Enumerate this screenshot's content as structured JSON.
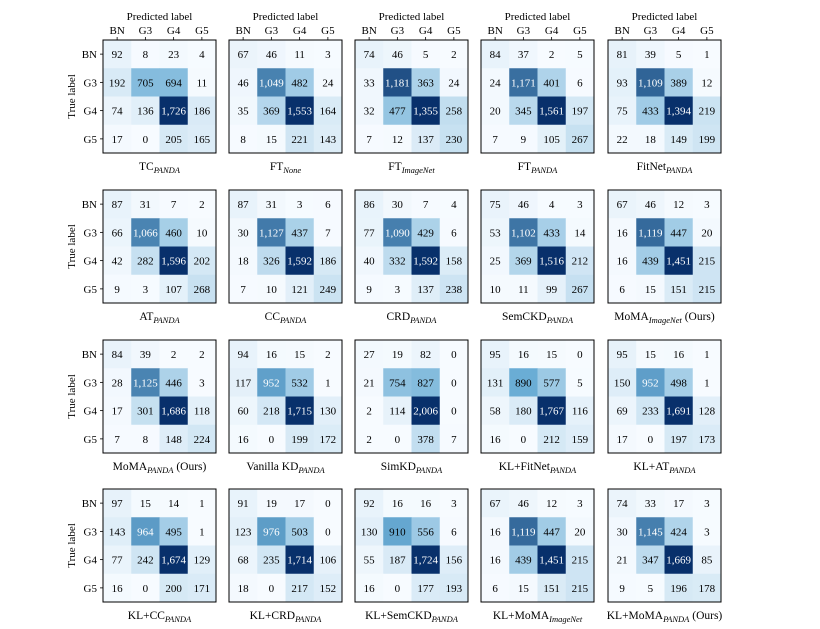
{
  "chart_data": {
    "type": "heatmap",
    "figure": "confusion matrices",
    "row_labels": [
      "BN",
      "G3",
      "G4",
      "G5"
    ],
    "col_labels": [
      "BN",
      "G3",
      "G4",
      "G5"
    ],
    "xlabel": "Predicted label",
    "ylabel": "True label",
    "colormap": "Blues",
    "colors": {
      "low": "#f7fbff",
      "mid": "#6baed6",
      "high": "#08306b",
      "text_dark": "#000000",
      "text_light": "#ffffff"
    },
    "matrices": [
      {
        "caption": "TC",
        "subscript": "PANDA",
        "suffix": "",
        "values": [
          [
            92,
            8,
            23,
            4
          ],
          [
            192,
            705,
            694,
            11
          ],
          [
            74,
            136,
            1726,
            186
          ],
          [
            17,
            0,
            205,
            165
          ]
        ]
      },
      {
        "caption": "FT",
        "subscript": "None",
        "suffix": "",
        "values": [
          [
            67,
            46,
            11,
            3
          ],
          [
            46,
            1049,
            482,
            24
          ],
          [
            35,
            369,
            1553,
            164
          ],
          [
            8,
            15,
            221,
            143
          ]
        ]
      },
      {
        "caption": "FT",
        "subscript": "ImageNet",
        "suffix": "",
        "values": [
          [
            74,
            46,
            5,
            2
          ],
          [
            33,
            1181,
            363,
            24
          ],
          [
            32,
            477,
            1355,
            258
          ],
          [
            7,
            12,
            137,
            230
          ]
        ]
      },
      {
        "caption": "FT",
        "subscript": "PANDA",
        "suffix": "",
        "values": [
          [
            84,
            37,
            2,
            5
          ],
          [
            24,
            1171,
            401,
            6
          ],
          [
            20,
            345,
            1561,
            197
          ],
          [
            7,
            9,
            105,
            267
          ]
        ]
      },
      {
        "caption": "FitNet",
        "subscript": "PANDA",
        "suffix": "",
        "values": [
          [
            81,
            39,
            5,
            1
          ],
          [
            93,
            1109,
            389,
            12
          ],
          [
            75,
            433,
            1394,
            219
          ],
          [
            22,
            18,
            149,
            199
          ]
        ]
      },
      {
        "caption": "AT",
        "subscript": "PANDA",
        "suffix": "",
        "values": [
          [
            87,
            31,
            7,
            2
          ],
          [
            66,
            1066,
            460,
            10
          ],
          [
            42,
            282,
            1596,
            202
          ],
          [
            9,
            3,
            107,
            268
          ]
        ]
      },
      {
        "caption": "CC",
        "subscript": "PANDA",
        "suffix": "",
        "values": [
          [
            87,
            31,
            3,
            6
          ],
          [
            30,
            1127,
            437,
            7
          ],
          [
            18,
            326,
            1592,
            186
          ],
          [
            7,
            10,
            121,
            249
          ]
        ]
      },
      {
        "caption": "CRD",
        "subscript": "PANDA",
        "suffix": "",
        "values": [
          [
            86,
            30,
            7,
            4
          ],
          [
            77,
            1090,
            429,
            6
          ],
          [
            40,
            332,
            1592,
            158
          ],
          [
            9,
            3,
            137,
            238
          ]
        ]
      },
      {
        "caption": "SemCKD",
        "subscript": "PANDA",
        "suffix": "",
        "values": [
          [
            75,
            46,
            4,
            3
          ],
          [
            53,
            1102,
            433,
            14
          ],
          [
            25,
            369,
            1516,
            212
          ],
          [
            10,
            11,
            99,
            267
          ]
        ]
      },
      {
        "caption": "MoMA",
        "subscript": "ImageNet",
        "suffix": " (Ours)",
        "values": [
          [
            67,
            46,
            12,
            3
          ],
          [
            16,
            1119,
            447,
            20
          ],
          [
            16,
            439,
            1451,
            215
          ],
          [
            6,
            15,
            151,
            215
          ]
        ]
      },
      {
        "caption": "MoMA",
        "subscript": "PANDA",
        "suffix": " (Ours)",
        "values": [
          [
            84,
            39,
            2,
            2
          ],
          [
            28,
            1125,
            446,
            3
          ],
          [
            17,
            301,
            1686,
            118
          ],
          [
            7,
            8,
            148,
            224
          ]
        ]
      },
      {
        "caption": "Vanilla KD",
        "subscript": "PANDA",
        "suffix": "",
        "values": [
          [
            94,
            16,
            15,
            2
          ],
          [
            117,
            952,
            532,
            1
          ],
          [
            60,
            218,
            1715,
            130
          ],
          [
            16,
            0,
            199,
            172
          ]
        ]
      },
      {
        "caption": "SimKD",
        "subscript": "PANDA",
        "suffix": "",
        "values": [
          [
            27,
            19,
            82,
            0
          ],
          [
            21,
            754,
            827,
            0
          ],
          [
            2,
            114,
            2006,
            0
          ],
          [
            2,
            0,
            378,
            7
          ]
        ]
      },
      {
        "caption": "KL+FitNet",
        "subscript": "PANDA",
        "suffix": "",
        "values": [
          [
            95,
            16,
            15,
            0
          ],
          [
            131,
            890,
            577,
            5
          ],
          [
            58,
            180,
            1767,
            116
          ],
          [
            16,
            0,
            212,
            159
          ]
        ]
      },
      {
        "caption": "KL+AT",
        "subscript": "PANDA",
        "suffix": "",
        "values": [
          [
            95,
            15,
            16,
            1
          ],
          [
            150,
            952,
            498,
            1
          ],
          [
            69,
            233,
            1691,
            128
          ],
          [
            17,
            0,
            197,
            173
          ]
        ]
      },
      {
        "caption": "KL+CC",
        "subscript": "PANDA",
        "suffix": "",
        "values": [
          [
            97,
            15,
            14,
            1
          ],
          [
            143,
            964,
            495,
            1
          ],
          [
            77,
            242,
            1674,
            129
          ],
          [
            16,
            0,
            200,
            171
          ]
        ]
      },
      {
        "caption": "KL+CRD",
        "subscript": "PANDA",
        "suffix": "",
        "values": [
          [
            91,
            19,
            17,
            0
          ],
          [
            123,
            976,
            503,
            0
          ],
          [
            68,
            235,
            1714,
            106
          ],
          [
            18,
            0,
            217,
            152
          ]
        ]
      },
      {
        "caption": "KL+SemCKD",
        "subscript": "PANDA",
        "suffix": "",
        "values": [
          [
            92,
            16,
            16,
            3
          ],
          [
            130,
            910,
            556,
            6
          ],
          [
            55,
            187,
            1724,
            156
          ],
          [
            16,
            0,
            177,
            193
          ]
        ]
      },
      {
        "caption": "KL+MoMA",
        "subscript": "ImageNet",
        "suffix": "",
        "values": [
          [
            67,
            46,
            12,
            3
          ],
          [
            16,
            1119,
            447,
            20
          ],
          [
            16,
            439,
            1451,
            215
          ],
          [
            6,
            15,
            151,
            215
          ]
        ]
      },
      {
        "caption": "KL+MoMA",
        "subscript": "PANDA",
        "suffix": " (Ours)",
        "values": [
          [
            74,
            33,
            17,
            3
          ],
          [
            30,
            1145,
            424,
            3
          ],
          [
            21,
            347,
            1669,
            85
          ],
          [
            9,
            5,
            196,
            178
          ]
        ]
      }
    ]
  }
}
